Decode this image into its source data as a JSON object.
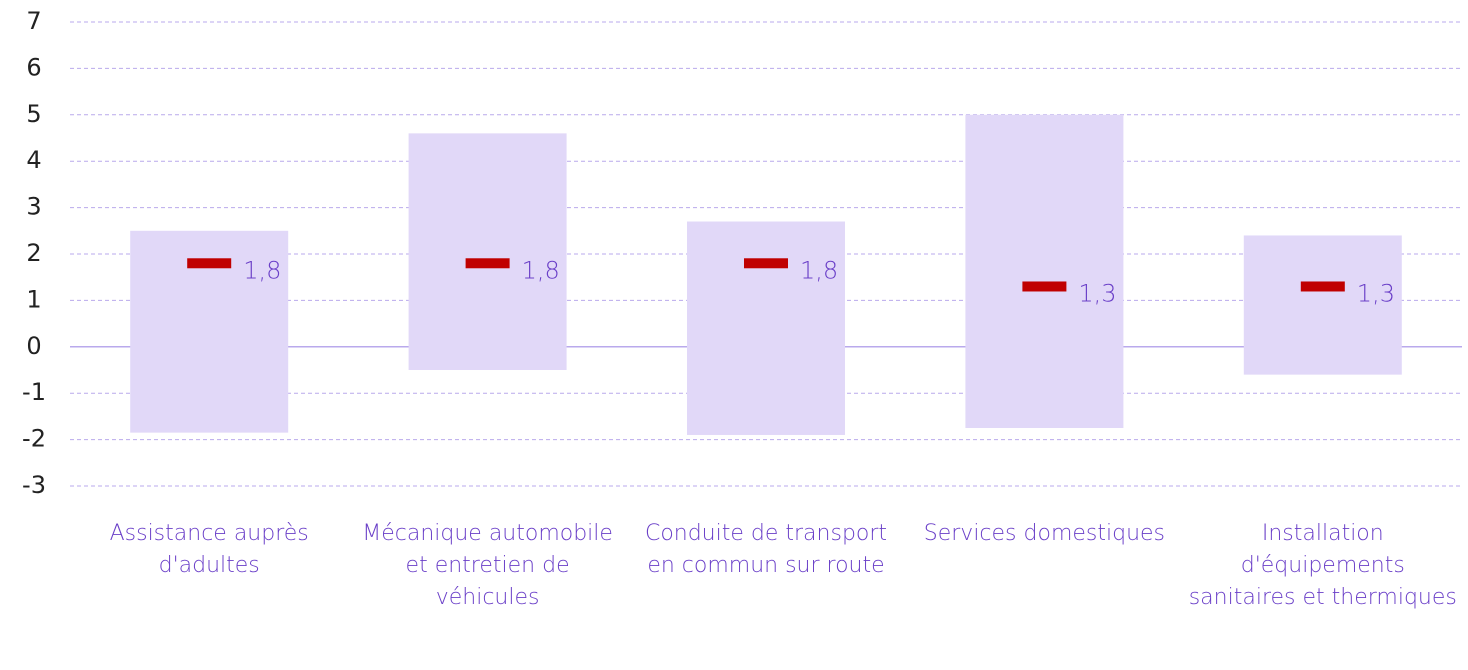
{
  "chart_data": {
    "type": "range",
    "categories": [
      "Assistance auprès d'adultes",
      "Mécanique automobile et entretien de véhicules",
      "Conduite de transport en commun sur route",
      "Services domestiques",
      "Installation d'équipements sanitaires et thermiques"
    ],
    "low": [
      -1.85,
      -0.5,
      -1.9,
      -1.75,
      -0.6
    ],
    "high": [
      2.5,
      4.6,
      2.7,
      5.0,
      2.4
    ],
    "median": [
      1.8,
      1.8,
      1.8,
      1.3,
      1.3
    ],
    "value_labels": [
      "1,8",
      "1,8",
      "1,8",
      "1,3",
      "1,3"
    ],
    "range_color": "#e1d8f8",
    "median_color": "#c00000",
    "ylim": [
      -3,
      7
    ],
    "yticks": [
      -3,
      -2,
      -1,
      0,
      1,
      2,
      3,
      4,
      5,
      6,
      7
    ],
    "grid": true
  }
}
